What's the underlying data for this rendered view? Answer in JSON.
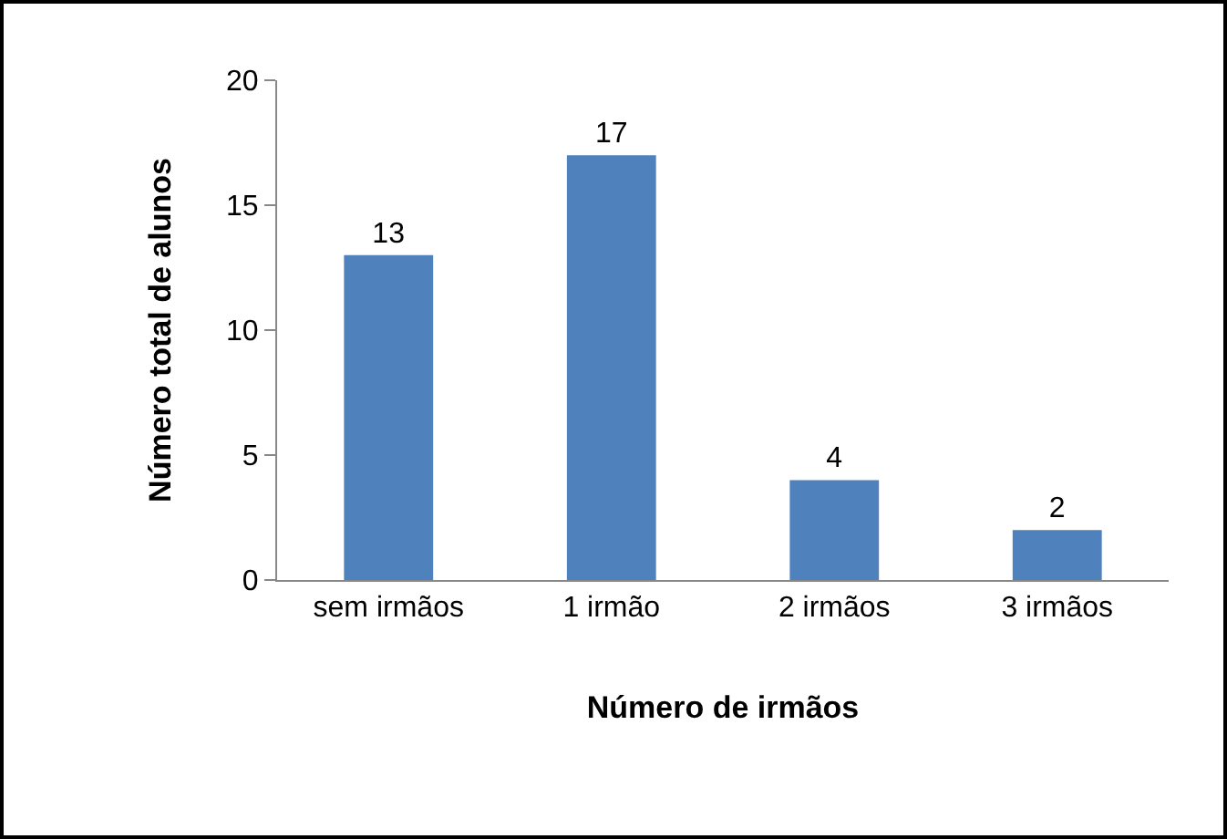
{
  "chart_data": {
    "type": "bar",
    "xlabel": "Número de irmãos",
    "ylabel": "Número total de alunos",
    "categories": [
      "sem irmãos",
      "1 irmão",
      "2 irmãos",
      "3 irmãos"
    ],
    "values": [
      13,
      17,
      4,
      2
    ],
    "color": "#4f81bd",
    "data_labels": true,
    "ylim": [
      0,
      20
    ],
    "yticks": [
      0,
      5,
      10,
      15,
      20
    ],
    "grid": false
  }
}
